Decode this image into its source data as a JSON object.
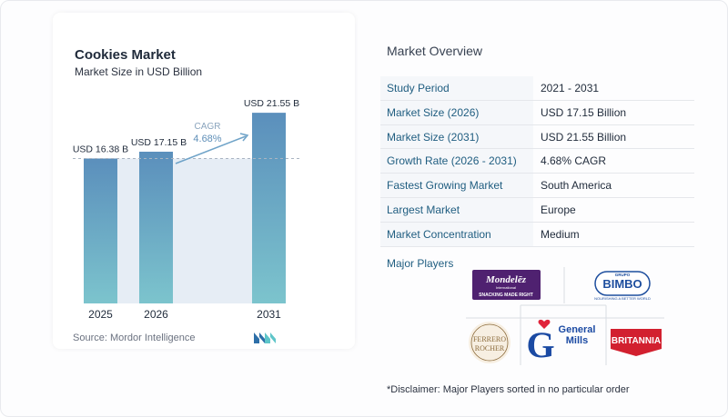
{
  "chart_data": {
    "type": "bar",
    "title": "Cookies Market",
    "subtitle": "Market Size in USD Billion",
    "categories": [
      "2025",
      "2026",
      "2031"
    ],
    "values": [
      16.38,
      17.15,
      21.55
    ],
    "value_labels": [
      "USD 16.38 B",
      "USD 17.15 B",
      "USD 21.55 B"
    ],
    "ylim": [
      0,
      23
    ],
    "cagr_label": "CAGR",
    "cagr_value": "4.68%",
    "colors": {
      "bar_top": "#5b8fbc",
      "bar_bottom": "#7cc4cd",
      "gap": "#e6edf5",
      "arrow": "#6fa3c8",
      "cagr_text": "#5f8fb8"
    }
  },
  "source": "Source:  Mordor Intelligence",
  "overview": {
    "title": "Market Overview",
    "rows": [
      {
        "label": "Study Period",
        "value": "2021 - 2031"
      },
      {
        "label": "Market Size (2026)",
        "value": "USD 17.15 Billion"
      },
      {
        "label": "Market Size (2031)",
        "value": "USD 21.55 Billion"
      },
      {
        "label": "Growth Rate (2026 - 2031)",
        "value": "4.68% CAGR"
      },
      {
        "label": "Fastest Growing Market",
        "value": "South America"
      },
      {
        "label": "Largest Market",
        "value": "Europe"
      },
      {
        "label": "Market Concentration",
        "value": "Medium"
      }
    ]
  },
  "players": {
    "title": "Major Players",
    "mondelez": {
      "name": "Mondelēz",
      "sub": "International",
      "tagline": "SNACKING MADE RIGHT",
      "color": "#4f2170"
    },
    "bimbo": {
      "top": "GRUPO",
      "name": "BIMBO",
      "tagline": "NOURISHING A BETTER WORLD",
      "color": "#1d4e9e"
    },
    "ferrero": {
      "line1": "FERRERO",
      "line2": "ROCHER",
      "color": "#8b6a3a"
    },
    "general_mills": {
      "line1": "General",
      "line2": "Mills",
      "mark": "G",
      "color": "#1b4aa3"
    },
    "britannia": {
      "name": "BRITANNIA",
      "color": "#d2202f"
    }
  },
  "disclaimer": "*Disclaimer: Major Players sorted in no particular order"
}
